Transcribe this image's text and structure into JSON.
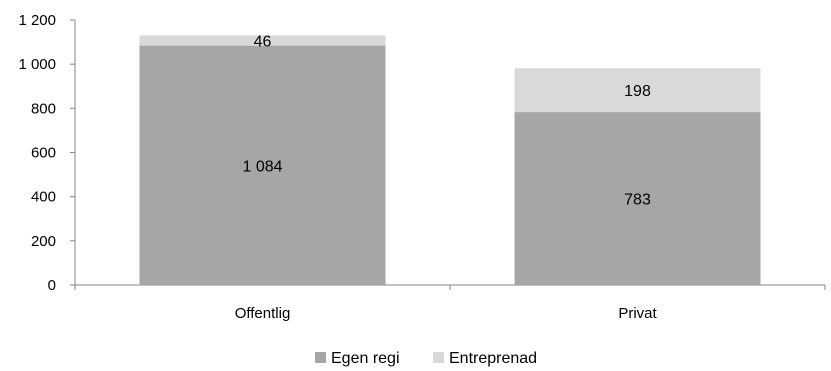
{
  "chart_data": {
    "type": "bar",
    "stacked": true,
    "categories": [
      "Offentlig",
      "Privat"
    ],
    "series": [
      {
        "name": "Egen regi",
        "values": [
          1084,
          783
        ],
        "value_labels": [
          "1 084",
          "783"
        ],
        "color": "#a6a6a6"
      },
      {
        "name": "Entreprenad",
        "values": [
          46,
          198
        ],
        "value_labels": [
          "46",
          "198"
        ],
        "color": "#d9d9d9"
      }
    ],
    "ylim": [
      0,
      1200
    ],
    "yticks": [
      0,
      200,
      400,
      600,
      800,
      1000,
      1200
    ],
    "ytick_labels": [
      "0",
      "200",
      "400",
      "600",
      "800",
      "1 000",
      "1 200"
    ],
    "grid": false,
    "legend_position": "bottom"
  }
}
